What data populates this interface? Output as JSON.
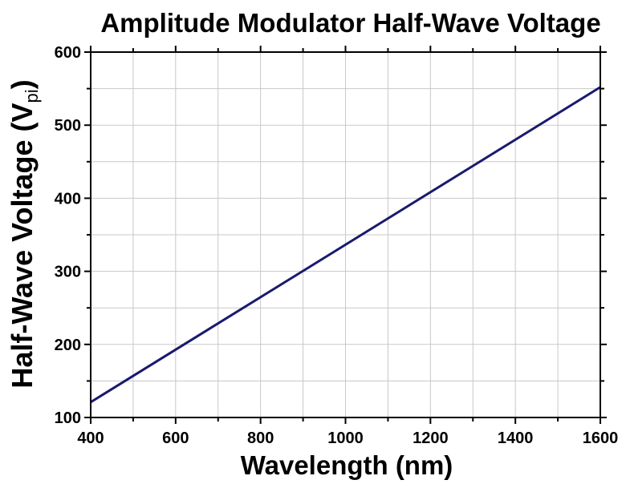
{
  "chart_data": {
    "type": "line",
    "title": "Amplitude Modulator Half-Wave Voltage",
    "xlabel": "Wavelength (nm)",
    "ylabel": "Half-Wave Voltage (V",
    "ylabel_subscript": "pi",
    "ylabel_close": ")",
    "xlim": [
      400,
      1600
    ],
    "ylim": [
      100,
      600
    ],
    "x_ticks": [
      400,
      600,
      800,
      1000,
      1200,
      1400,
      1600
    ],
    "y_ticks": [
      100,
      200,
      300,
      400,
      500,
      600
    ],
    "grid": true,
    "series": [
      {
        "color": "#1a1a6e",
        "x": [
          400,
          1600
        ],
        "y": [
          121,
          552
        ]
      }
    ]
  }
}
